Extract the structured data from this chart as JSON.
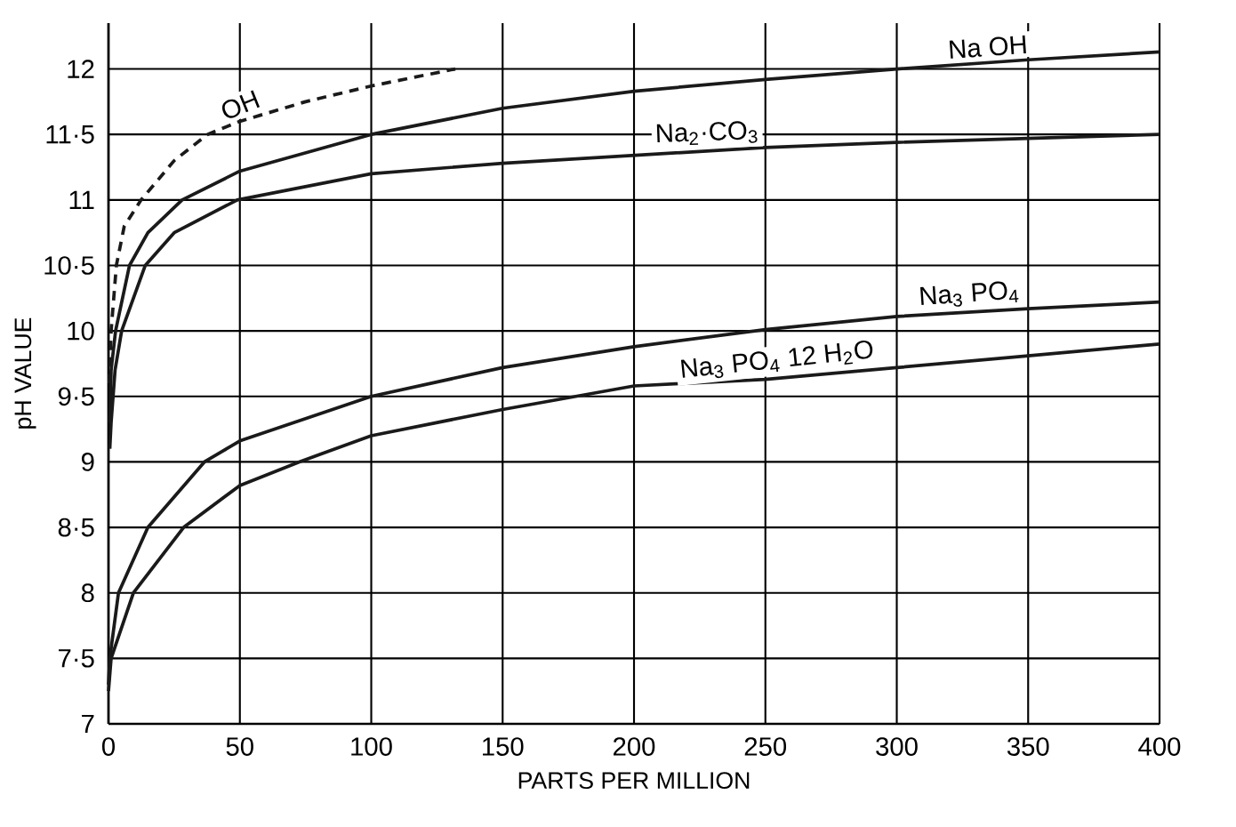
{
  "chart_data": {
    "type": "line",
    "xlabel": "PARTS PER MILLION",
    "ylabel": "pH VALUE",
    "xlim": [
      0,
      400
    ],
    "ylim": [
      7,
      12.35
    ],
    "xticks": [
      0,
      50,
      100,
      150,
      200,
      250,
      300,
      350,
      400
    ],
    "yticks": [
      7,
      {
        "value": 7.5,
        "label": "7·5"
      },
      8,
      {
        "value": 8.5,
        "label": "8·5"
      },
      9,
      {
        "value": 9.5,
        "label": "9·5"
      },
      10,
      {
        "value": 10.5,
        "label": "10·5"
      },
      11,
      {
        "value": 11.5,
        "label": "11·5"
      },
      12
    ],
    "grid": true,
    "series": [
      {
        "name": "OH",
        "color": "#1a1a1a",
        "line_style": "dashed",
        "x": [
          0.3,
          1,
          3,
          6,
          12.4,
          25,
          37.7,
          50,
          75,
          100,
          132
        ],
        "values": [
          9.6,
          10.0,
          10.5,
          10.8,
          11.0,
          11.3,
          11.5,
          11.6,
          11.75,
          11.87,
          12.0
        ]
      },
      {
        "name": "Na OH",
        "color": "#1a1a1a",
        "line_style": "solid",
        "x": [
          0.5,
          1,
          2.7,
          8,
          15,
          28,
          50,
          100,
          150,
          200,
          250,
          300,
          350,
          400
        ],
        "values": [
          9.3,
          9.7,
          10.0,
          10.5,
          10.75,
          11.0,
          11.22,
          11.5,
          11.7,
          11.83,
          11.92,
          12.0,
          12.07,
          12.13
        ]
      },
      {
        "name": "Na$_{2}$·CO$_{3}$",
        "color": "#1a1a1a",
        "line_style": "solid",
        "x": [
          0.5,
          1,
          2.5,
          5,
          14,
          25,
          49,
          100,
          150,
          200,
          250,
          300,
          350,
          400
        ],
        "values": [
          9.1,
          9.3,
          9.7,
          10.0,
          10.5,
          10.75,
          11.0,
          11.2,
          11.28,
          11.34,
          11.4,
          11.44,
          11.47,
          11.5
        ]
      },
      {
        "name": "Na$_{3}$ PO$_{4}$",
        "color": "#1a1a1a",
        "line_style": "solid",
        "x": [
          0,
          0.5,
          3.8,
          15,
          36.5,
          50,
          100,
          150,
          200,
          250,
          300,
          350,
          400
        ],
        "values": [
          7.3,
          7.5,
          8.0,
          8.5,
          9.0,
          9.16,
          9.5,
          9.72,
          9.88,
          10.01,
          10.11,
          10.17,
          10.22
        ]
      },
      {
        "name": "Na$_{3}$ PO$_{4}$ 12 H$_{2}$O",
        "color": "#1a1a1a",
        "line_style": "solid",
        "x": [
          0,
          1,
          9.5,
          28.6,
          50,
          72.6,
          100,
          150,
          200,
          250,
          300,
          350,
          400
        ],
        "values": [
          7.25,
          7.5,
          8.0,
          8.5,
          8.82,
          9.0,
          9.2,
          9.4,
          9.58,
          9.63,
          9.72,
          9.81,
          9.9
        ]
      }
    ]
  }
}
